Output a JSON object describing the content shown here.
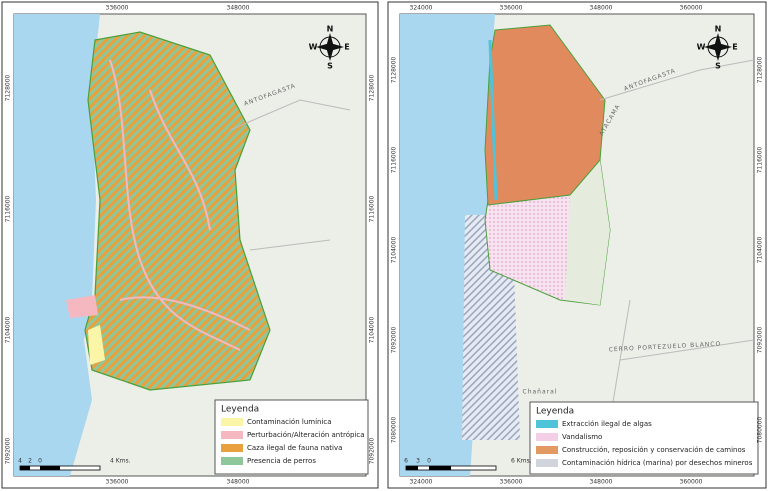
{
  "panels": [
    {
      "top_coords": [
        "336000",
        "348000"
      ],
      "side_coords": [
        "7128000",
        "7116000",
        "7104000",
        "7092000"
      ],
      "compass": {
        "n": "N",
        "s": "S",
        "w": "W",
        "e": "E"
      },
      "places": [
        "ANTOFAGASTA"
      ],
      "scale": [
        "4",
        "2",
        "0",
        "4 Kms."
      ],
      "legend": {
        "title": "Leyenda",
        "items": [
          {
            "label": "Contaminación lumínica",
            "color": "#fbf5a8"
          },
          {
            "label": "Perturbación/Alteración antrópica",
            "color": "#f6b8c0"
          },
          {
            "label": "Caza ilegal de fauna nativa",
            "color": "#e8a13c"
          },
          {
            "label": "Presencia de perros",
            "color": "#8fc79a"
          }
        ]
      }
    },
    {
      "top_coords": [
        "324000",
        "336000",
        "348000",
        "360000"
      ],
      "side_coords": [
        "7128000",
        "7116000",
        "7104000",
        "7092000",
        "7080000"
      ],
      "compass": {
        "n": "N",
        "s": "S",
        "w": "W",
        "e": "E"
      },
      "places": [
        "ATACAMA",
        "ANTOFAGASTA",
        "CERRO PORTEZUELO BLANCO",
        "Chañaral"
      ],
      "scale": [
        "6",
        "3",
        "0",
        "6 Kms."
      ],
      "legend": {
        "title": "Leyenda",
        "items": [
          {
            "label": "Extracción ilegal de algas",
            "color": "#4fc3d9"
          },
          {
            "label": "Vandalismo",
            "color": "#f4cde6"
          },
          {
            "label": "Construcción, reposición y conservación de caminos",
            "color": "#e39a62"
          },
          {
            "label": "Contaminación hídrica (marina) por desechos mineros",
            "color": "#d0d4dc"
          }
        ]
      }
    }
  ]
}
